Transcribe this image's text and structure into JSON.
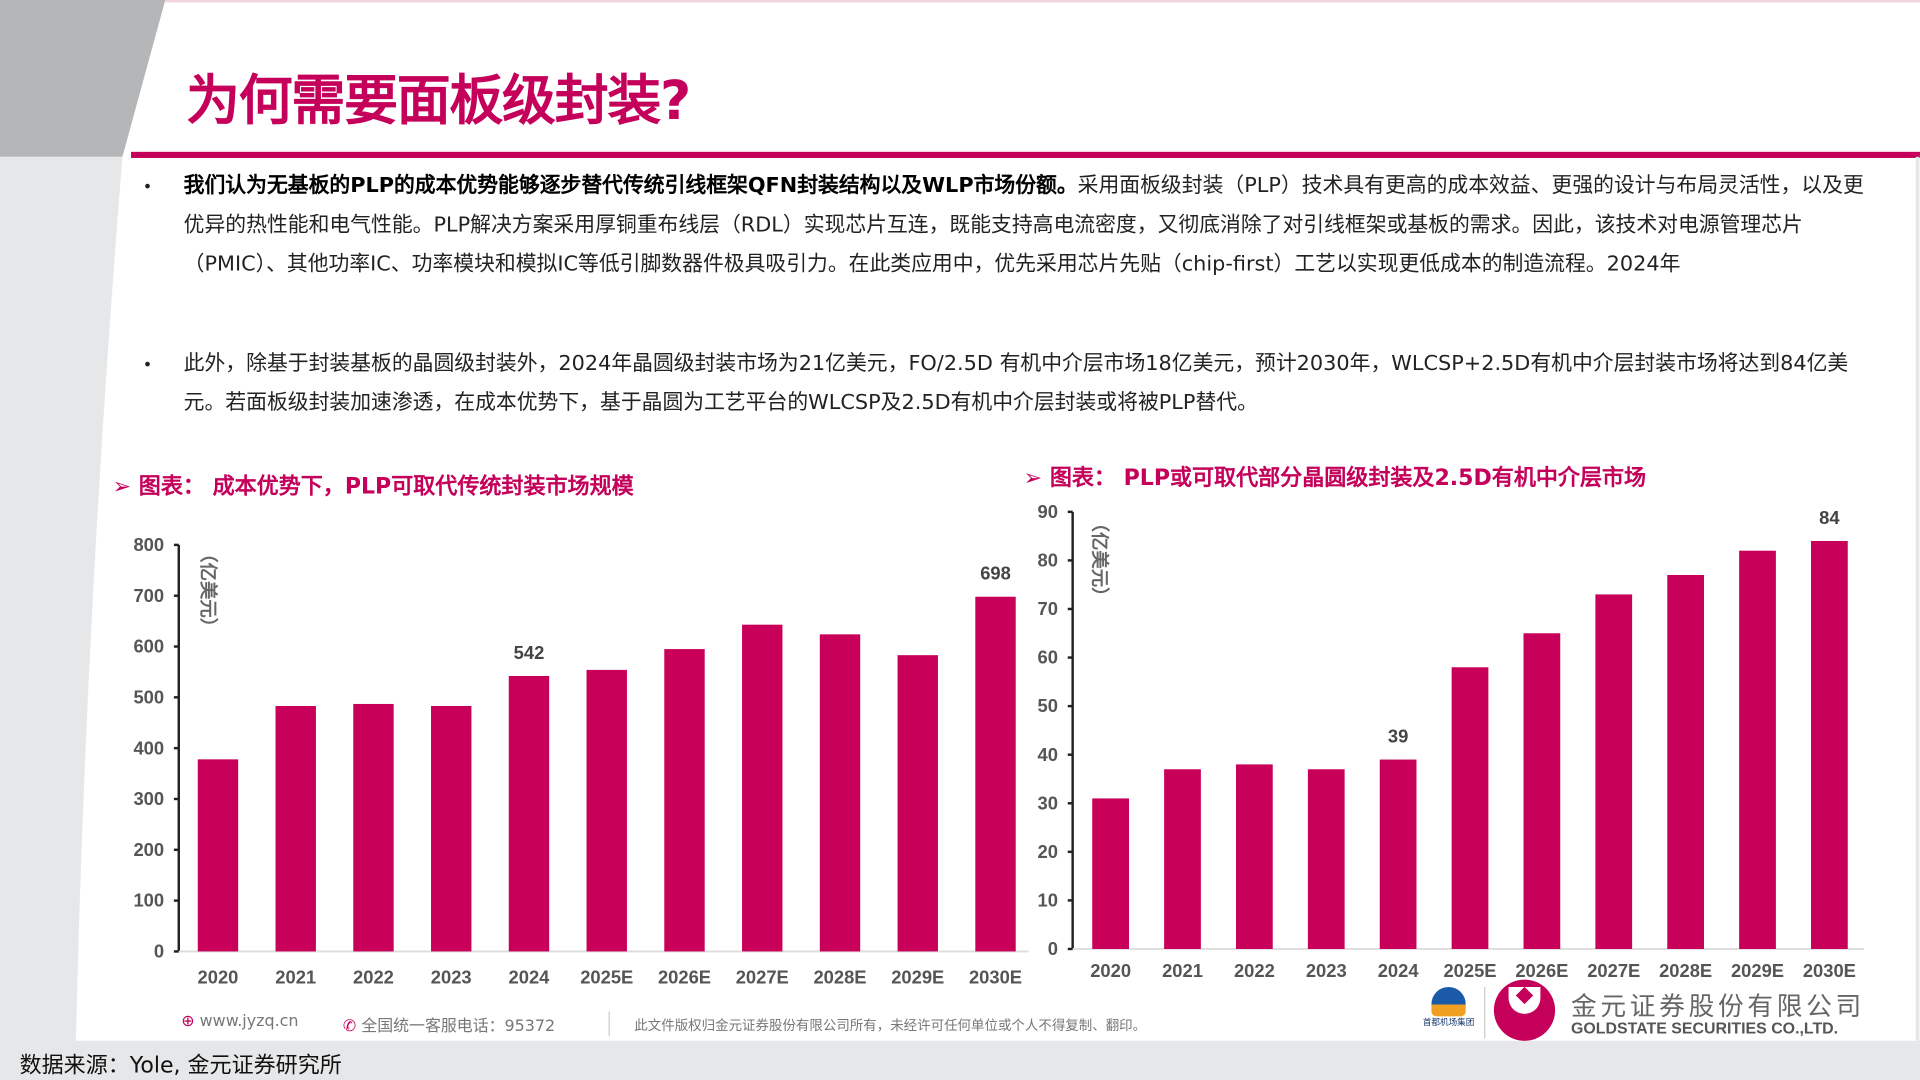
{
  "title": "为何需要面板级封装?",
  "bullets": [
    {
      "bold": "我们认为无基板的PLP的成本优势能够逐步替代传统引线框架QFN封装结构以及WLP市场份额。",
      "text": "采用面板级封装（PLP）技术具有更高的成本效益、更强的设计与布局灵活性，以及更优异的热性能和电气性能。PLP解决方案采用厚铜重布线层（RDL）实现芯片互连，既能支持高电流密度，又彻底消除了对引线框架或基板的需求。因此，该技术对电源管理芯片（PMIC）、其他功率IC、功率模块和模拟IC等低引脚数器件极具吸引力。在此类应用中，优先采用芯片先贴（chip-first）工艺以实现更低成本的制造流程。2024年"
    },
    {
      "bold": "",
      "text": "此外，除基于封装基板的晶圆级封装外，2024年晶圆级封装市场为21亿美元，FO/2.5D 有机中介层市场18亿美元，预计2030年，WLCSP+2.5D有机中介层封装市场将达到84亿美元。若面板级封装加速渗透，在成本优势下，基于晶圆为工艺平台的WLCSP及2.5D有机中介层封装或将被PLP替代。"
    }
  ],
  "bullet_symbol": "•",
  "chart_data": [
    {
      "type": "bar",
      "title": "图表： 成本优势下，PLP可取代传统封装市场规模",
      "ylabel": "（亿美元）",
      "categories": [
        "2020",
        "2021",
        "2022",
        "2023",
        "2024",
        "2025E",
        "2026E",
        "2027E",
        "2028E",
        "2029E",
        "2030E"
      ],
      "values": [
        378,
        483,
        487,
        483,
        542,
        554,
        595,
        643,
        624,
        583,
        698
      ],
      "data_labels": {
        "2024": "542",
        "2030E": "698"
      },
      "ylim": [
        0,
        800
      ],
      "yticks": [
        0,
        100,
        200,
        300,
        400,
        500,
        600,
        700,
        800
      ],
      "grid": false,
      "color": "#c8005a"
    },
    {
      "type": "bar",
      "title": "图表： PLP或可取代部分晶圆级封装及2.5D有机中介层市场",
      "ylabel": "（亿美元）",
      "categories": [
        "2020",
        "2021",
        "2022",
        "2023",
        "2024",
        "2025E",
        "2026E",
        "2027E",
        "2028E",
        "2029E",
        "2030E"
      ],
      "values": [
        31,
        37,
        38,
        37,
        39,
        58,
        65,
        73,
        77,
        82,
        84
      ],
      "data_labels": {
        "2024": "39",
        "2030E": "84"
      },
      "ylim": [
        0,
        90
      ],
      "yticks": [
        0,
        10,
        20,
        30,
        40,
        50,
        60,
        70,
        80,
        90
      ],
      "grid": false,
      "color": "#c8005a"
    }
  ],
  "footer": {
    "website": "www.jyzq.cn",
    "hotline": "全国统一客服电话：95372",
    "copyright": "此文件版权归金元证券股份有限公司所有，未经许可任何单位或个人不得复制、翻印。",
    "company_cn": "金元证券股份有限公司",
    "company_en": "GOLDSTATE SECURITIES CO.,LTD.",
    "partner_logo": "首都机场集团"
  },
  "source": "数据来源：Yole, 金元证券研究所",
  "colors": {
    "accent": "#c4005a",
    "bar": "#c8005a",
    "header_gray": "#b5b6b8",
    "side_gray": "#e6e7e8"
  }
}
